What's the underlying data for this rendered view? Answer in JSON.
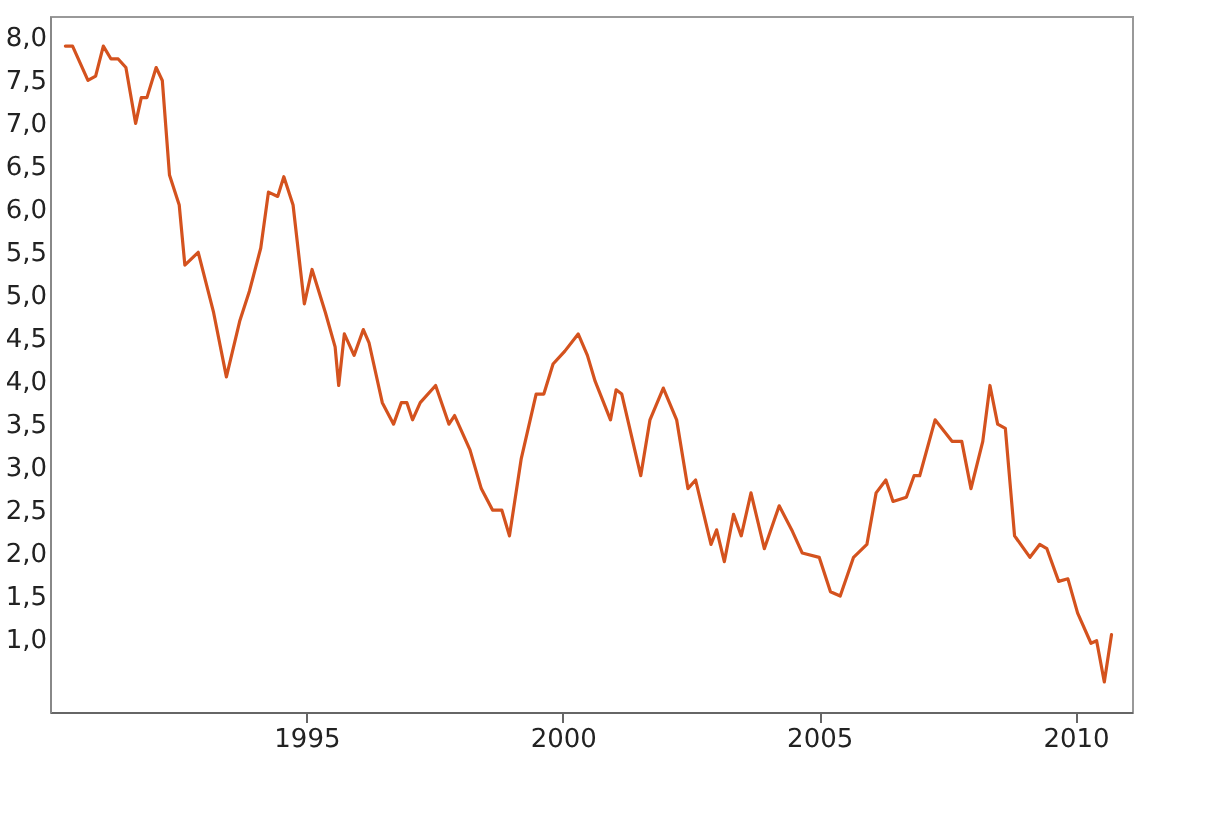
{
  "chart_data": {
    "type": "line",
    "line_style": "solid",
    "marker": "none",
    "grid": false,
    "xlim": [
      1990.0,
      2011.1
    ],
    "ylim": [
      0.15,
      8.25
    ],
    "xticks": [
      1995,
      2000,
      2005,
      2010
    ],
    "yticks": [
      {
        "value": 1,
        "label": "1,0"
      },
      {
        "value": 1.5,
        "label": "1,5"
      },
      {
        "value": 2,
        "label": "2,0"
      },
      {
        "value": 2.5,
        "label": "2,5"
      },
      {
        "value": 3,
        "label": "3,0"
      },
      {
        "value": 3.5,
        "label": "3,5"
      },
      {
        "value": 4,
        "label": "4,0"
      },
      {
        "value": 4.5,
        "label": "4,5"
      },
      {
        "value": 5,
        "label": "5,0"
      },
      {
        "value": 5.5,
        "label": "5,5"
      },
      {
        "value": 6,
        "label": "6,0"
      },
      {
        "value": 6.5,
        "label": "6,5"
      },
      {
        "value": 7,
        "label": "7,0"
      },
      {
        "value": 7.5,
        "label": "7,5"
      },
      {
        "value": 8,
        "label": "8,0"
      }
    ],
    "x": [
      1990.3,
      1990.44,
      1990.74,
      1990.89,
      1991.04,
      1991.19,
      1991.33,
      1991.48,
      1991.67,
      1991.78,
      1991.89,
      1992.07,
      1992.19,
      1992.33,
      1992.52,
      1992.63,
      1992.89,
      1993.19,
      1993.44,
      1993.7,
      1993.89,
      1994.11,
      1994.26,
      1994.44,
      1994.56,
      1994.74,
      1994.96,
      1995.11,
      1995.37,
      1995.56,
      1995.63,
      1995.74,
      1995.93,
      1996.11,
      1996.22,
      1996.48,
      1996.7,
      1996.85,
      1996.96,
      1997.07,
      1997.22,
      1997.52,
      1997.78,
      1997.89,
      1998.19,
      1998.41,
      1998.63,
      1998.81,
      1998.96,
      1999.19,
      1999.48,
      1999.63,
      1999.81,
      2000.04,
      2000.3,
      2000.48,
      2000.63,
      2000.93,
      2001.04,
      2001.15,
      2001.52,
      2001.7,
      2001.96,
      2002.22,
      2002.44,
      2002.59,
      2002.89,
      2003.0,
      2003.15,
      2003.33,
      2003.48,
      2003.67,
      2003.93,
      2004.22,
      2004.48,
      2004.67,
      2005.0,
      2005.22,
      2005.41,
      2005.67,
      2005.93,
      2006.11,
      2006.3,
      2006.44,
      2006.7,
      2006.85,
      2006.96,
      2007.26,
      2007.59,
      2007.78,
      2007.96,
      2008.19,
      2008.33,
      2008.48,
      2008.63,
      2008.81,
      2009.11,
      2009.3,
      2009.44,
      2009.67,
      2009.85,
      2010.04,
      2010.3,
      2010.41,
      2010.56,
      2010.7
    ],
    "series": [
      {
        "color": "#d4521e",
        "values": [
          7.9,
          7.9,
          7.5,
          7.55,
          7.9,
          7.75,
          7.75,
          7.65,
          7.0,
          7.3,
          7.3,
          7.65,
          7.5,
          6.4,
          6.05,
          5.35,
          5.5,
          4.8,
          4.05,
          4.7,
          5.05,
          5.55,
          6.2,
          6.15,
          6.38,
          6.05,
          4.9,
          5.3,
          4.8,
          4.4,
          3.95,
          4.55,
          4.3,
          4.6,
          4.45,
          3.75,
          3.5,
          3.75,
          3.75,
          3.55,
          3.75,
          3.95,
          3.5,
          3.6,
          3.2,
          2.75,
          2.5,
          2.5,
          2.2,
          3.1,
          3.85,
          3.85,
          4.2,
          4.35,
          4.55,
          4.3,
          4.0,
          3.55,
          3.9,
          3.85,
          2.9,
          3.55,
          3.92,
          3.55,
          2.75,
          2.85,
          2.1,
          2.27,
          1.9,
          2.45,
          2.2,
          2.7,
          2.05,
          2.55,
          2.25,
          2.0,
          1.95,
          1.55,
          1.5,
          1.95,
          2.1,
          2.7,
          2.85,
          2.6,
          2.65,
          2.9,
          2.9,
          3.55,
          3.3,
          3.3,
          2.75,
          3.3,
          3.95,
          3.5,
          3.45,
          2.2,
          1.95,
          2.1,
          2.05,
          1.67,
          1.7,
          1.3,
          0.95,
          0.98,
          0.5,
          1.05
        ]
      }
    ]
  }
}
